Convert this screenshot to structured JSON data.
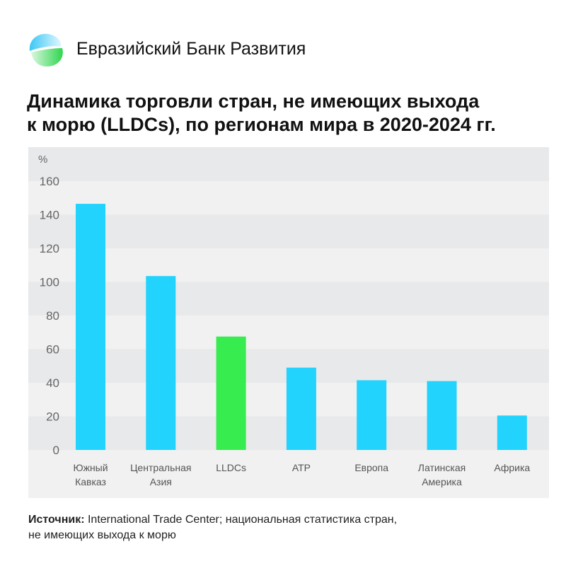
{
  "header": {
    "brand": "Евразийский Банк Развития",
    "logo_icon": "edb-logo-icon"
  },
  "title_lines": [
    "Динамика торговли стран, не имеющих выхода",
    "к морю (LLDCs), по регионам мира в 2020-2024 гг."
  ],
  "source": {
    "label": "Источник:",
    "text_line1": " International Trade Center; национальная статистика стран,",
    "text_line2": "не имеющих выхода к морю"
  },
  "colors": {
    "bar": "#22d3fd",
    "highlight": "#36ec4f",
    "band_dark": "#e8e9eb",
    "band_light": "#f1f1f1"
  },
  "chart_data": {
    "type": "bar",
    "title": "Динамика торговли стран, не имеющих выхода к морю (LLDCs), по регионам мира в 2020-2024 гг.",
    "ylabel": "%",
    "xlabel": "",
    "ylim": [
      0,
      160
    ],
    "yticks": [
      "0",
      "20",
      "40",
      "60",
      "80",
      "100",
      "120",
      "140",
      "160"
    ],
    "categories": [
      [
        "Южный",
        "Кавказ"
      ],
      [
        "Центральная",
        "Азия"
      ],
      [
        "LLDCs"
      ],
      [
        "АТР"
      ],
      [
        "Европа"
      ],
      [
        "Латинская",
        "Америка"
      ],
      [
        "Африка"
      ]
    ],
    "values": [
      146.5,
      103.5,
      67.5,
      49,
      41.5,
      41,
      20.5
    ],
    "highlight_index": 2,
    "grid": "alternating bands"
  }
}
